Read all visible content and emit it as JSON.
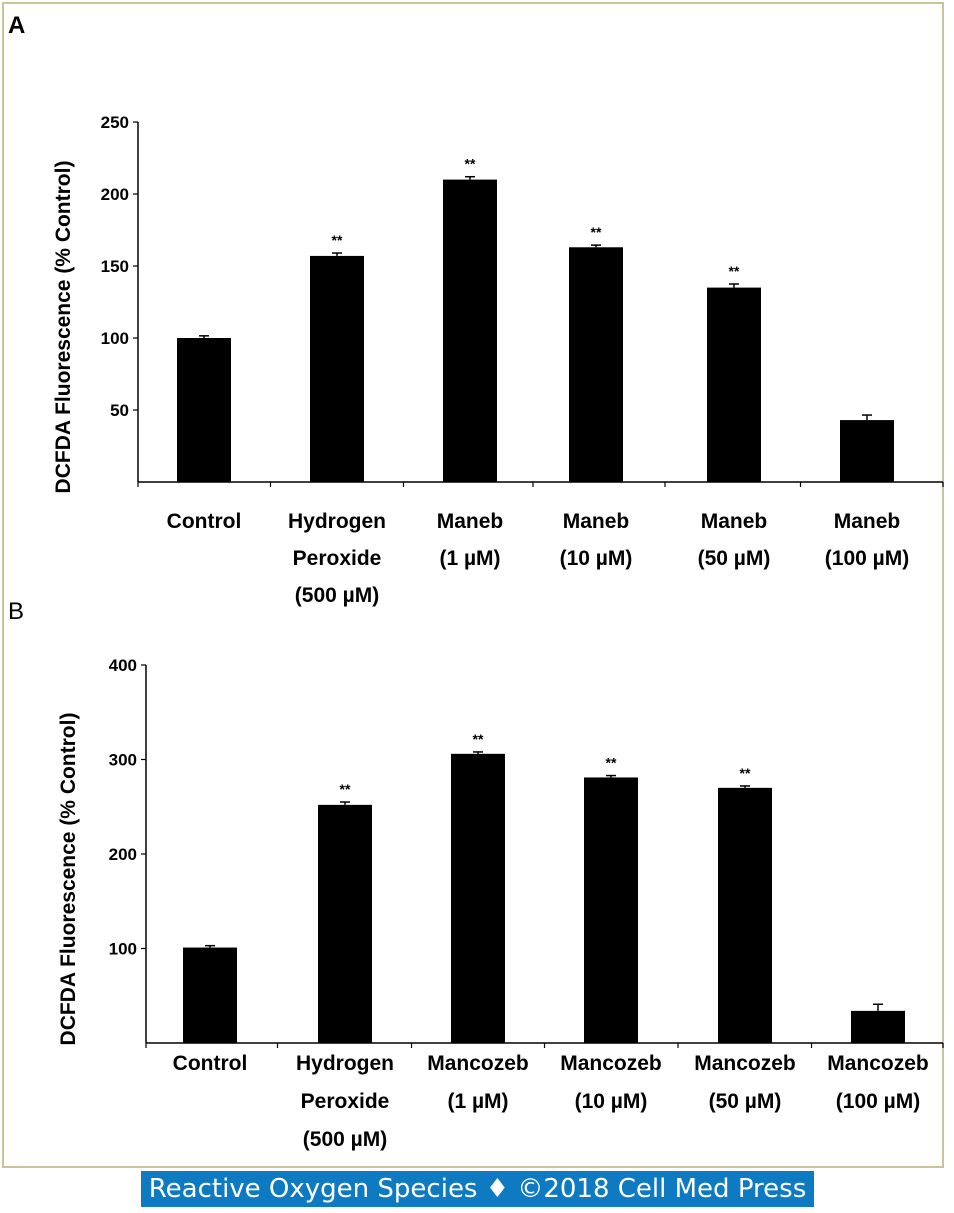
{
  "footer": "Reactive Oxygen Species ♦ ©2018 Cell Med Press",
  "chart_data": [
    {
      "panel": "A",
      "type": "bar",
      "ylabel": "DCFDA Fluorescence (% Control)",
      "ylim": [
        0,
        250
      ],
      "yticks": [
        50,
        100,
        150,
        200,
        250
      ],
      "categories": [
        [
          "Control"
        ],
        [
          "Hydrogen",
          "Peroxide",
          "(500 µM)"
        ],
        [
          "Maneb",
          "(1 µM)"
        ],
        [
          "Maneb",
          "(10  µM)"
        ],
        [
          "Maneb",
          "(50 µM)"
        ],
        [
          "Maneb",
          "(100 µM)"
        ]
      ],
      "values": [
        100,
        157,
        210,
        163,
        135,
        43
      ],
      "errors": [
        1.5,
        2,
        2,
        1.5,
        2.5,
        3.5
      ],
      "significance": [
        "",
        "**",
        "**",
        "**",
        "**",
        ""
      ],
      "bar_color": "#000000"
    },
    {
      "panel": "B",
      "type": "bar",
      "ylabel": "DCFDA Fluorescence (% Control)",
      "ylim": [
        0,
        400
      ],
      "yticks": [
        100,
        200,
        300,
        400
      ],
      "categories": [
        [
          "Control"
        ],
        [
          "Hydrogen",
          "Peroxide",
          "(500 µM)"
        ],
        [
          "Mancozeb",
          "(1 µM)"
        ],
        [
          "Mancozeb",
          "(10  µM)"
        ],
        [
          "Mancozeb",
          "(50 µM)"
        ],
        [
          "Mancozeb",
          "(100 µM)"
        ]
      ],
      "values": [
        101,
        252,
        306,
        281,
        270,
        34
      ],
      "errors": [
        2,
        3,
        2,
        2,
        2,
        7
      ],
      "significance": [
        "",
        "**",
        "**",
        "**",
        "**",
        ""
      ],
      "bar_color": "#000000"
    }
  ]
}
